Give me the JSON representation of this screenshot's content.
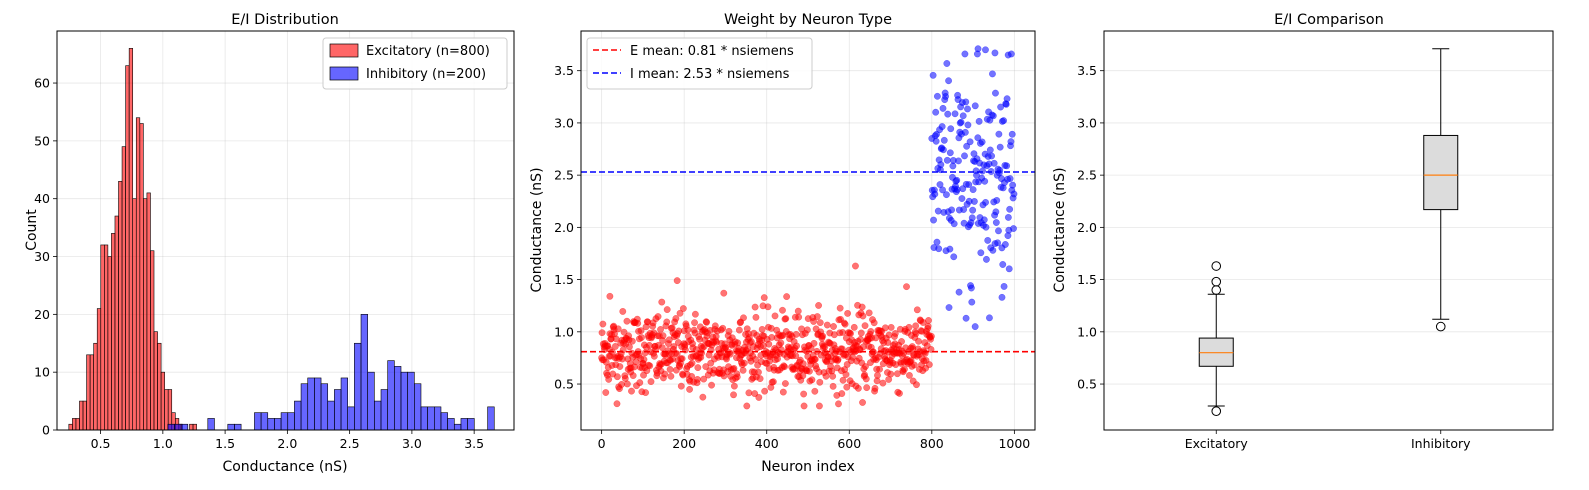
{
  "chart_data": [
    {
      "type": "histogram",
      "title": "E/I Distribution",
      "xlabel": "Conductance (nS)",
      "ylabel": "Count",
      "xlim": [
        0.15,
        3.82
      ],
      "ylim": [
        0,
        69
      ],
      "xticks": [
        "0.5",
        "1.0",
        "1.5",
        "2.0",
        "2.5",
        "3.0",
        "3.5"
      ],
      "xtick_values": [
        0.5,
        1.0,
        1.5,
        2.0,
        2.5,
        3.0,
        3.5
      ],
      "yticks": [
        "0",
        "10",
        "20",
        "30",
        "40",
        "50",
        "60"
      ],
      "ytick_values": [
        0,
        10,
        20,
        30,
        40,
        50,
        60
      ],
      "grid": true,
      "legend_position": "top-right",
      "series": [
        {
          "name": "Excitatory (n=800)",
          "color": "#ff0000",
          "bin_start": 0.245,
          "bin_width": 0.0285,
          "counts": [
            1,
            2,
            2,
            5,
            5,
            13,
            13,
            15,
            21,
            32,
            32,
            30,
            34,
            37,
            43,
            49,
            63,
            66,
            40,
            54,
            53,
            40,
            41,
            31,
            17,
            15,
            10,
            7,
            7,
            3,
            2,
            1,
            0,
            0,
            1,
            1
          ]
        },
        {
          "name": "Inhibitory (n=200)",
          "color": "#0000ff",
          "bin_start": 1.04,
          "bin_width": 0.0535,
          "counts": [
            1,
            1,
            1,
            0,
            0,
            0,
            2,
            0,
            0,
            1,
            1,
            0,
            0,
            3,
            3,
            2,
            2,
            3,
            3,
            5,
            8,
            9,
            9,
            8,
            5,
            7,
            9,
            4,
            15,
            20,
            10,
            5,
            7,
            12,
            11,
            10,
            10,
            8,
            4,
            4,
            4,
            3,
            2,
            1,
            2,
            2,
            0,
            0,
            4
          ]
        }
      ]
    },
    {
      "type": "scatter",
      "title": "Weight by Neuron Type",
      "xlabel": "Neuron index",
      "ylabel": "Conductance (nS)",
      "xlim": [
        -50,
        1050
      ],
      "ylim": [
        0.06,
        3.88
      ],
      "xticks": [
        "0",
        "200",
        "400",
        "600",
        "800",
        "1000"
      ],
      "xtick_values": [
        0,
        200,
        400,
        600,
        800,
        1000
      ],
      "yticks": [
        "0.5",
        "1.0",
        "1.5",
        "2.0",
        "2.5",
        "3.0",
        "3.5"
      ],
      "ytick_values": [
        0.5,
        1.0,
        1.5,
        2.0,
        2.5,
        3.0,
        3.5
      ],
      "grid": true,
      "legend_position": "top-left",
      "series": [
        {
          "color": "#ff0000",
          "x_range": [
            0,
            799
          ],
          "count": 800,
          "center": 0.81,
          "spread": 0.19,
          "min": 0.24,
          "max": 1.63,
          "outliers": [
            [
              20,
              1.34
            ],
            [
              183,
              1.49
            ],
            [
              296,
              1.37
            ],
            [
              615,
              1.63
            ]
          ]
        },
        {
          "color": "#0000ff",
          "x_range": [
            800,
            999
          ],
          "count": 200,
          "center": 2.53,
          "spread": 0.49,
          "min": 1.05,
          "max": 3.71,
          "outliers": [
            [
              905,
              1.05
            ],
            [
              883,
              1.13
            ],
            [
              866,
              1.38
            ],
            [
              970,
              1.33
            ],
            [
              912,
              3.71
            ],
            [
              930,
              3.7
            ],
            [
              953,
              3.67
            ],
            [
              985,
              3.65
            ]
          ]
        }
      ],
      "reference_lines": [
        {
          "label": "E mean: 0.81 * nsiemens",
          "y": 0.81,
          "color": "#ff0000"
        },
        {
          "label": "I mean: 2.53 * nsiemens",
          "y": 2.53,
          "color": "#0000ff"
        }
      ]
    },
    {
      "type": "box",
      "title": "E/I Comparison",
      "ylabel": "Conductance (nS)",
      "ylim": [
        0.06,
        3.88
      ],
      "yticks": [
        "0.5",
        "1.0",
        "1.5",
        "2.0",
        "2.5",
        "3.0",
        "3.5"
      ],
      "ytick_values": [
        0.5,
        1.0,
        1.5,
        2.0,
        2.5,
        3.0,
        3.5
      ],
      "grid": true,
      "categories": [
        "Excitatory",
        "Inhibitory"
      ],
      "boxes": [
        {
          "whisker_low": 0.29,
          "q1": 0.67,
          "median": 0.8,
          "q3": 0.94,
          "whisker_high": 1.36,
          "outliers": [
            0.24,
            1.4,
            1.48,
            1.63
          ]
        },
        {
          "whisker_low": 1.12,
          "q1": 2.17,
          "median": 2.5,
          "q3": 2.88,
          "whisker_high": 3.71,
          "outliers": [
            1.05
          ]
        }
      ],
      "box_color": "#dcdcdc",
      "median_color": "#ff7f0e"
    }
  ]
}
